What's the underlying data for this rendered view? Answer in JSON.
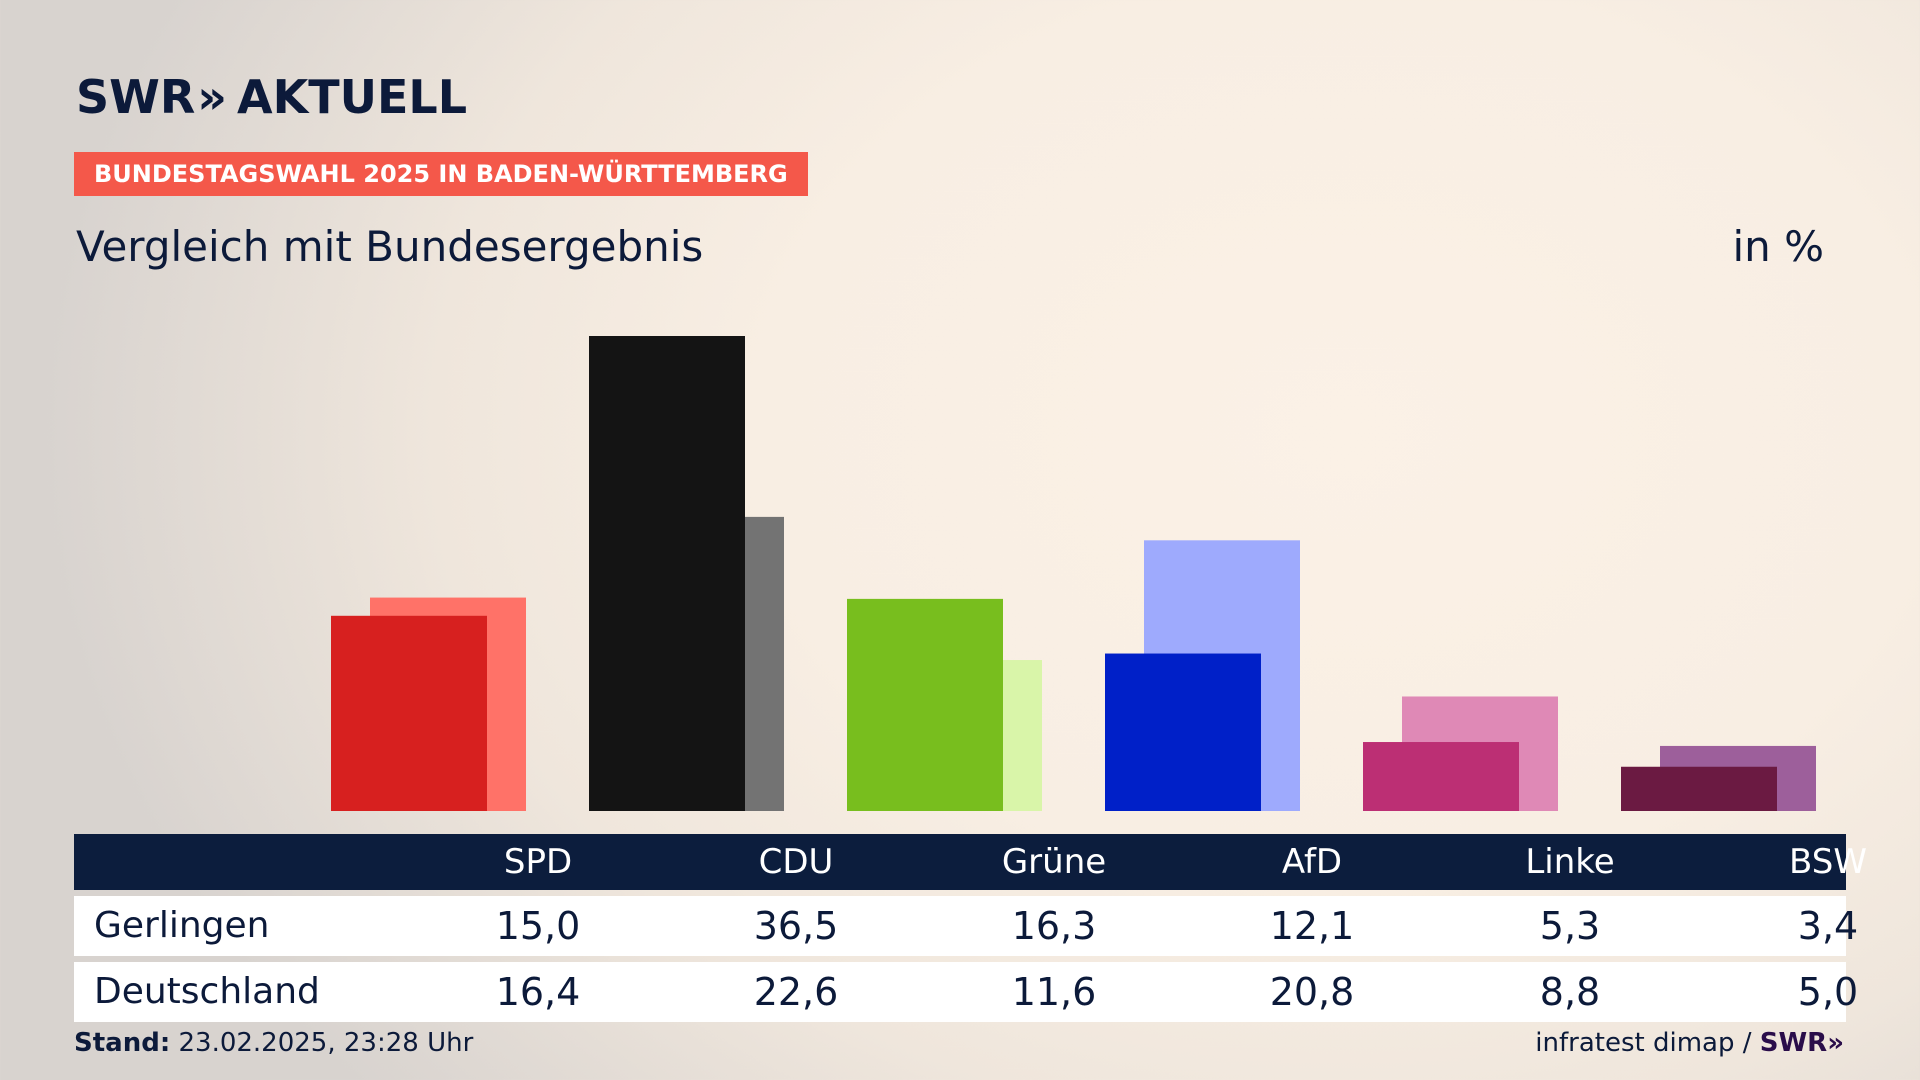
{
  "header": {
    "logo_text": "SWR",
    "logo_chevrons": "»",
    "logo_suffix": "AKTUELL",
    "kicker": "BUNDESTAGSWAHL 2025 IN BADEN-WÜRTTEMBERG",
    "subtitle": "Vergleich mit Bundesergebnis",
    "unit": "in %"
  },
  "chart_data": {
    "type": "bar",
    "title": "Vergleich mit Bundesergebnis",
    "ylabel": "in %",
    "ylim": [
      0,
      36.5
    ],
    "categories": [
      "SPD",
      "CDU",
      "Grüne",
      "AfD",
      "Linke",
      "BSW"
    ],
    "series": [
      {
        "name": "Gerlingen",
        "values": [
          15.0,
          36.5,
          16.3,
          12.1,
          5.3,
          3.4
        ]
      },
      {
        "name": "Deutschland",
        "values": [
          16.4,
          22.6,
          11.6,
          20.8,
          8.8,
          5.0
        ]
      }
    ],
    "colors": {
      "Gerlingen": [
        "#d7201f",
        "#141414",
        "#78be1e",
        "#0020c8",
        "#bc2f74",
        "#6b1a42"
      ],
      "Deutschland": [
        "#ff7268",
        "#737373",
        "#d9f5a9",
        "#9eaafd",
        "#df89b6",
        "#9d5f9b"
      ]
    }
  },
  "table": {
    "headers": [
      "SPD",
      "CDU",
      "Grüne",
      "AfD",
      "Linke",
      "BSW"
    ],
    "rows": [
      {
        "label": "Gerlingen",
        "values": [
          "15,0",
          "36,5",
          "16,3",
          "12,1",
          "5,3",
          "3,4"
        ]
      },
      {
        "label": "Deutschland",
        "values": [
          "16,4",
          "22,6",
          "11,6",
          "20,8",
          "8,8",
          "5,0"
        ]
      }
    ]
  },
  "footer": {
    "stand_label": "Stand:",
    "stand_value": "23.02.2025, 23:28 Uhr",
    "source": "infratest dimap /",
    "source_logo": "SWR»"
  }
}
